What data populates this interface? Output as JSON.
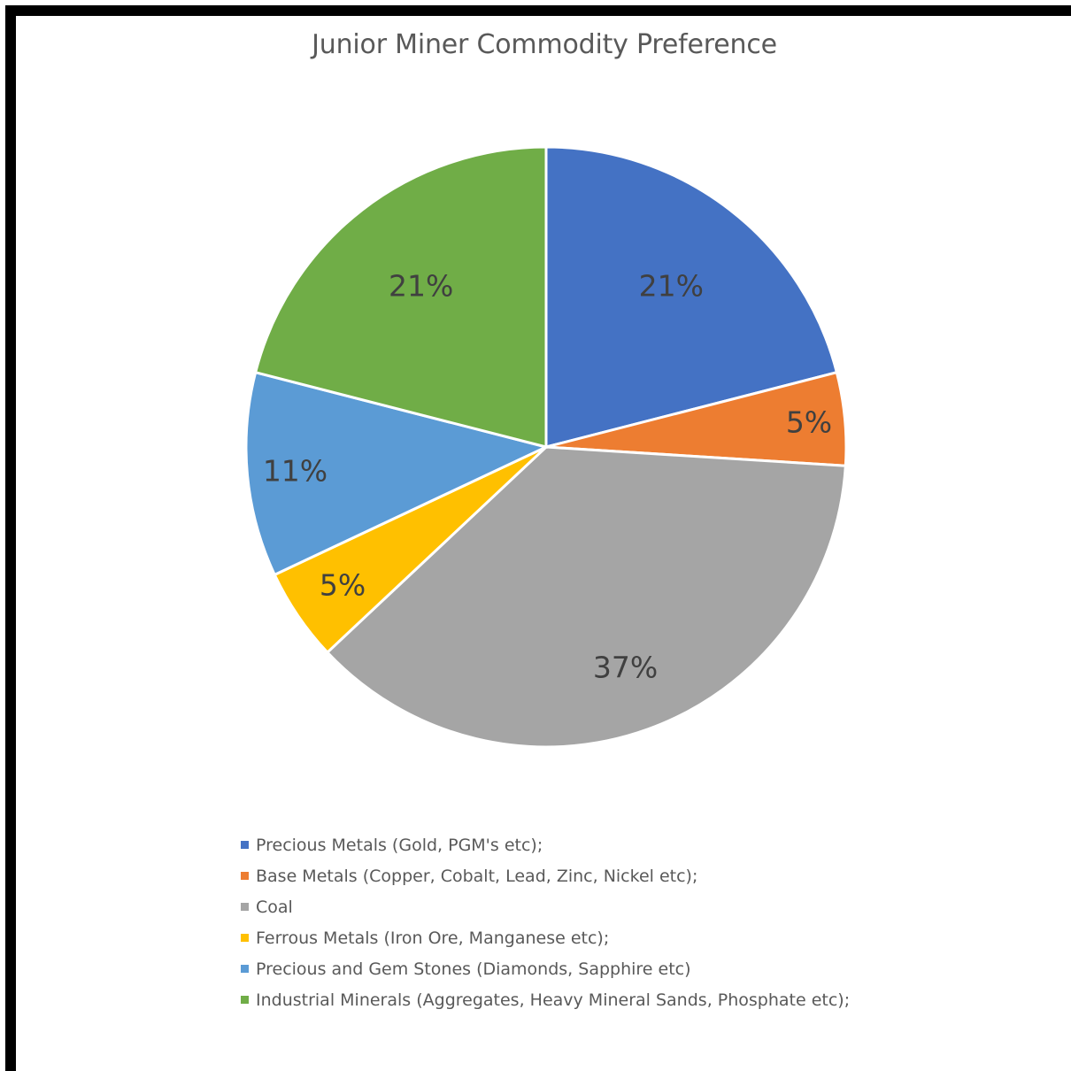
{
  "chart_data": {
    "type": "pie",
    "title": "Junior Miner Commodity Preference",
    "legend_position": "bottom",
    "slices": [
      {
        "label": "Precious Metals (Gold, PGM's etc);",
        "value": 21,
        "display": "21%",
        "color": "#4472C4"
      },
      {
        "label": "Base Metals (Copper, Cobalt, Lead, Zinc, Nickel etc);",
        "value": 5,
        "display": "5%",
        "color": "#ED7D31"
      },
      {
        "label": "Coal",
        "value": 37,
        "display": "37%",
        "color": "#A5A5A5"
      },
      {
        "label": "Ferrous Metals (Iron Ore, Manganese etc);",
        "value": 5,
        "display": "5%",
        "color": "#FFC000"
      },
      {
        "label": "Precious and Gem Stones (Diamonds, Sapphire etc)",
        "value": 11,
        "display": "11%",
        "color": "#5B9BD5"
      },
      {
        "label": "Industrial Minerals (Aggregates, Heavy Mineral Sands, Phosphate etc);",
        "value": 21,
        "display": "21%",
        "color": "#70AD47"
      }
    ]
  }
}
